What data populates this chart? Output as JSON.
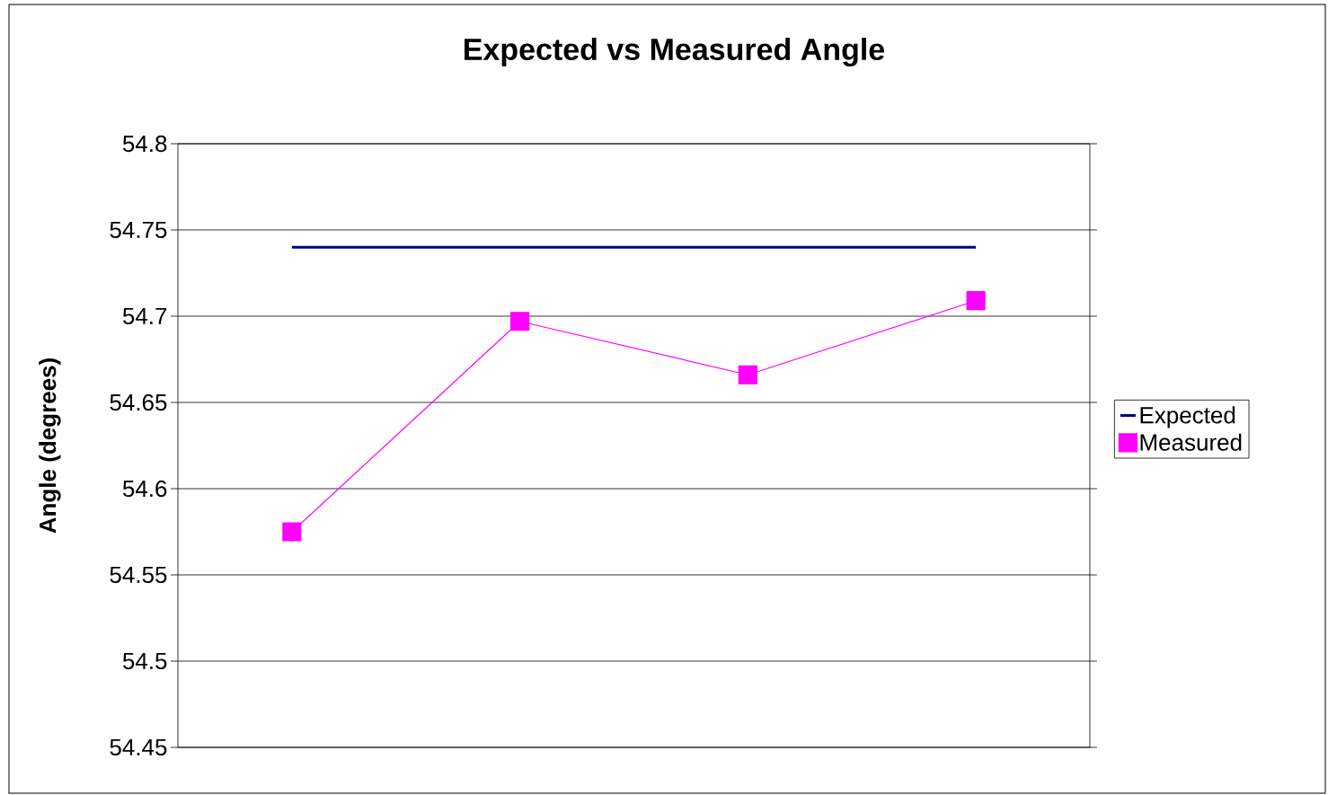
{
  "chart_data": {
    "type": "line",
    "title": "Expected vs Measured Angle",
    "ylabel": "Angle (degrees)",
    "categories": [
      null,
      null,
      null,
      null
    ],
    "series": [
      {
        "name": "Expected",
        "color": "#000080",
        "values": [
          54.74,
          54.74,
          54.74,
          54.74
        ],
        "marker": "none"
      },
      {
        "name": "Measured",
        "color": "#ff00ff",
        "values": [
          54.575,
          54.697,
          54.666,
          54.709
        ],
        "marker": "square"
      }
    ],
    "ylim": [
      54.45,
      54.8
    ],
    "yticks": [
      54.45,
      54.5,
      54.55,
      54.6,
      54.65,
      54.7,
      54.75,
      54.8
    ],
    "grid": "y",
    "legend": "right",
    "tick_labels": "y"
  }
}
